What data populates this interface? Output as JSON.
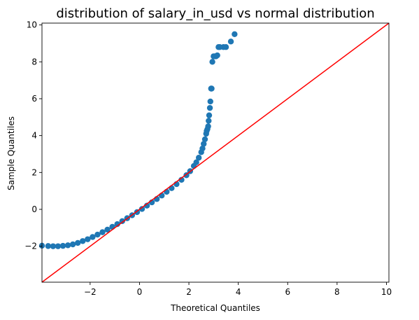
{
  "chart_data": {
    "type": "scatter",
    "title": "distribution of salary_in_usd vs normal distribution",
    "xlabel": "Theoretical Quantiles",
    "ylabel": "Sample Quantiles",
    "xlim": [
      -3.95,
      10.1
    ],
    "ylim": [
      -3.95,
      10.1
    ],
    "xticks": [
      -2,
      0,
      2,
      4,
      6,
      8,
      10
    ],
    "yticks": [
      -2,
      0,
      2,
      4,
      6,
      8,
      10
    ],
    "xtick_labels": [
      "−2",
      "0",
      "2",
      "4",
      "6",
      "8",
      "10"
    ],
    "ytick_labels": [
      "−2",
      "0",
      "2",
      "4",
      "6",
      "8",
      "10"
    ],
    "grid": false,
    "colors": {
      "points": "#1f77b4",
      "reference_line": "#ff0000"
    },
    "reference_line": {
      "name": "",
      "x": [
        -3.95,
        10.1
      ],
      "y": [
        -3.95,
        10.1
      ]
    },
    "series": [
      {
        "name": "",
        "x": [
          -3.95,
          -3.7,
          -3.5,
          -3.3,
          -3.1,
          -2.9,
          -2.7,
          -2.5,
          -2.3,
          -2.1,
          -1.9,
          -1.7,
          -1.5,
          -1.3,
          -1.1,
          -0.9,
          -0.7,
          -0.5,
          -0.3,
          -0.1,
          0.1,
          0.3,
          0.5,
          0.7,
          0.9,
          1.1,
          1.3,
          1.5,
          1.7,
          1.9,
          2.05,
          2.2,
          2.3,
          2.4,
          2.5,
          2.55,
          2.6,
          2.65,
          2.7,
          2.72,
          2.75,
          2.78,
          2.8,
          2.82,
          2.85,
          2.87,
          2.9,
          2.92,
          2.95,
          3.0,
          3.05,
          3.1,
          3.15,
          3.2,
          3.25,
          3.4,
          3.5,
          3.7,
          3.85
        ],
        "y": [
          -1.97,
          -1.99,
          -2.0,
          -2.0,
          -1.98,
          -1.95,
          -1.9,
          -1.82,
          -1.72,
          -1.62,
          -1.5,
          -1.37,
          -1.24,
          -1.1,
          -0.95,
          -0.8,
          -0.64,
          -0.48,
          -0.32,
          -0.15,
          0.02,
          0.2,
          0.38,
          0.56,
          0.75,
          0.95,
          1.15,
          1.37,
          1.6,
          1.85,
          2.07,
          2.35,
          2.55,
          2.8,
          3.1,
          3.3,
          3.55,
          3.8,
          4.1,
          4.25,
          4.35,
          4.5,
          4.8,
          5.1,
          5.5,
          5.85,
          6.55,
          6.55,
          8.0,
          8.3,
          8.3,
          8.3,
          8.35,
          8.8,
          8.8,
          8.8,
          8.8,
          9.1,
          9.5
        ]
      }
    ]
  }
}
